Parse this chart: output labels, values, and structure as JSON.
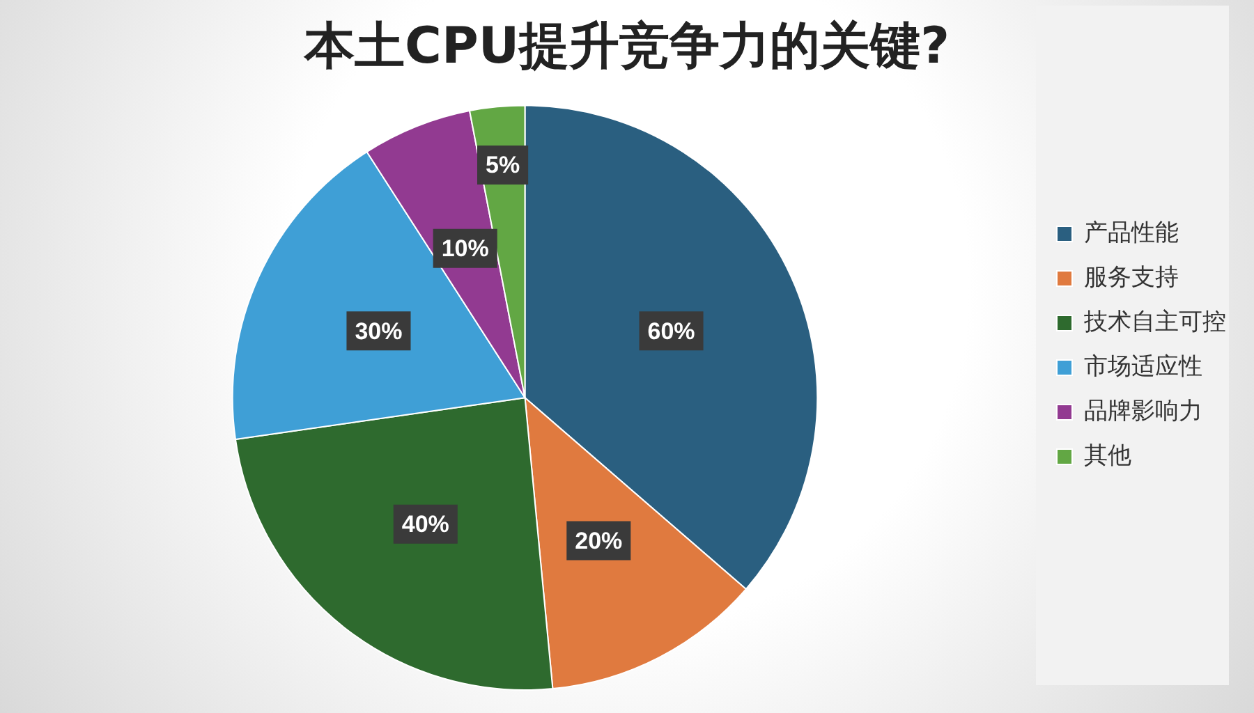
{
  "chart_data": {
    "type": "pie",
    "title": "本土CPU提升竞争力的关键?",
    "categories": [
      "产品性能",
      "服务支持",
      "技术自主可控",
      "市场适应性",
      "品牌影响力",
      "其他"
    ],
    "values": [
      60,
      20,
      40,
      30,
      10,
      5
    ],
    "colors": [
      "#2a5f80",
      "#e07a3f",
      "#2e6a2e",
      "#3f9fd6",
      "#923a91",
      "#62a744"
    ],
    "value_labels": [
      "60%",
      "20%",
      "40%",
      "30%",
      "10%",
      "5%"
    ],
    "legend": "right"
  }
}
